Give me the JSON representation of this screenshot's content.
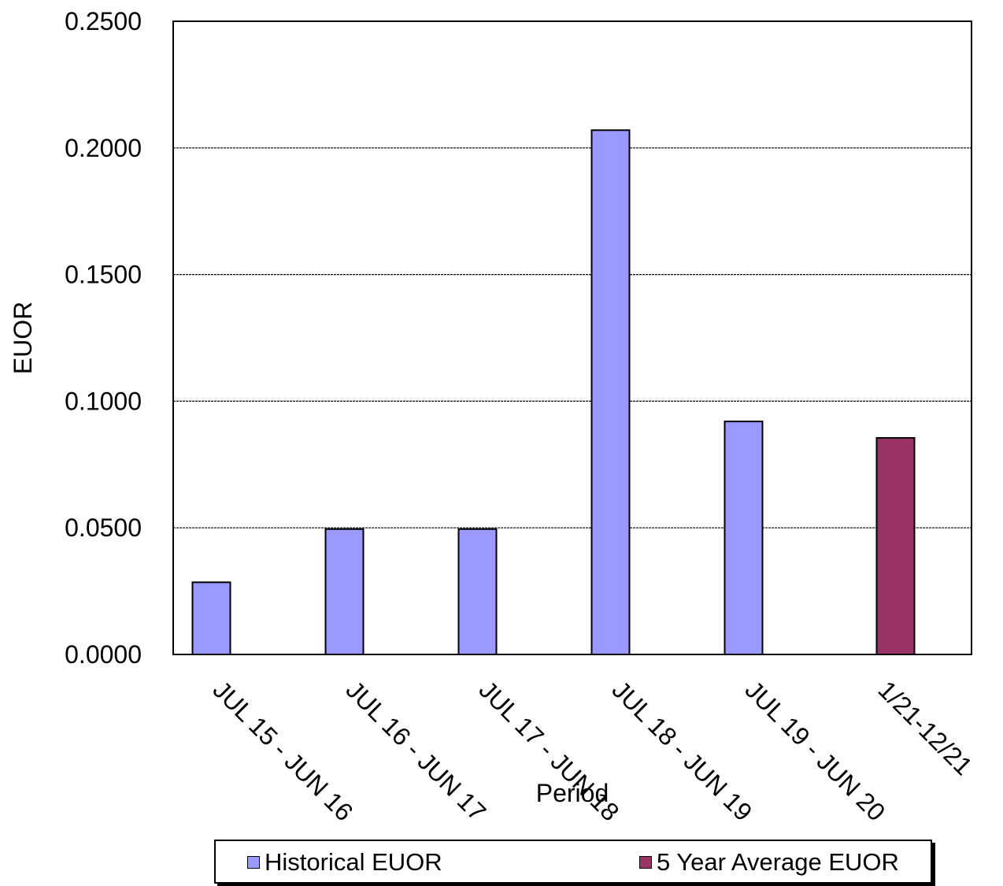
{
  "chart_data": {
    "type": "bar",
    "title": "",
    "xlabel": "Period",
    "ylabel": "EUOR",
    "ylim": [
      0,
      0.25
    ],
    "yticks": [
      "0.0000",
      "0.0500",
      "0.1000",
      "0.1500",
      "0.2000",
      "0.2500"
    ],
    "grid": true,
    "categories": [
      "JUL 15 - JUN 16",
      "JUL 16 - JUN 17",
      "JUL 17 - JUN 18",
      "JUL 18 - JUN 19",
      "JUL 19 - JUN 20",
      "1/21-12/21"
    ],
    "series": [
      {
        "name": "Historical EUOR",
        "color": "#9999ff",
        "values": [
          0.0285,
          0.0495,
          0.0495,
          0.207,
          0.092,
          null
        ]
      },
      {
        "name": "5 Year Average EUOR",
        "color": "#993366",
        "values": [
          null,
          null,
          null,
          null,
          null,
          0.0855
        ]
      }
    ],
    "legend": {
      "position": "bottom"
    }
  }
}
